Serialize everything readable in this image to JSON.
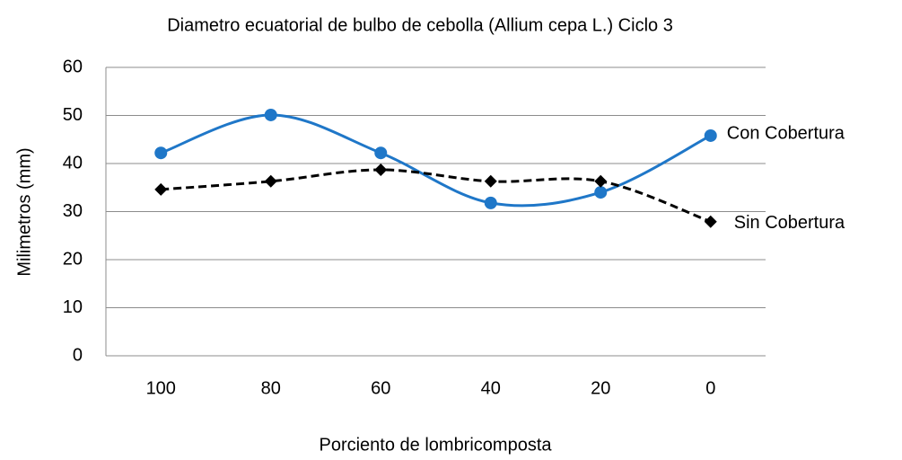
{
  "chart_data": {
    "type": "line",
    "title": "Diametro ecuatorial de bulbo de cebolla (Allium cepa L.) Ciclo 3",
    "x_label": "Porciento de lombricomposta",
    "y_label": "Milimetros (mm)",
    "categories": [
      "100",
      "80",
      "60",
      "40",
      "20",
      "0"
    ],
    "series": [
      {
        "name": "Con Cobertura",
        "color": "#1f77c8",
        "marker": "circle",
        "dash": false,
        "smooth": true,
        "values": [
          42.2,
          50.1,
          42.2,
          31.8,
          34.0,
          45.8
        ]
      },
      {
        "name": "Sin Cobertura",
        "color": "#000000",
        "marker": "diamond",
        "dash": true,
        "smooth": true,
        "values": [
          34.6,
          36.3,
          38.7,
          36.3,
          36.3,
          27.9
        ]
      }
    ],
    "ylim": [
      0,
      60
    ],
    "yticks": [
      0,
      10,
      20,
      30,
      40,
      50,
      60
    ],
    "grid": true,
    "legend": "line-end"
  }
}
